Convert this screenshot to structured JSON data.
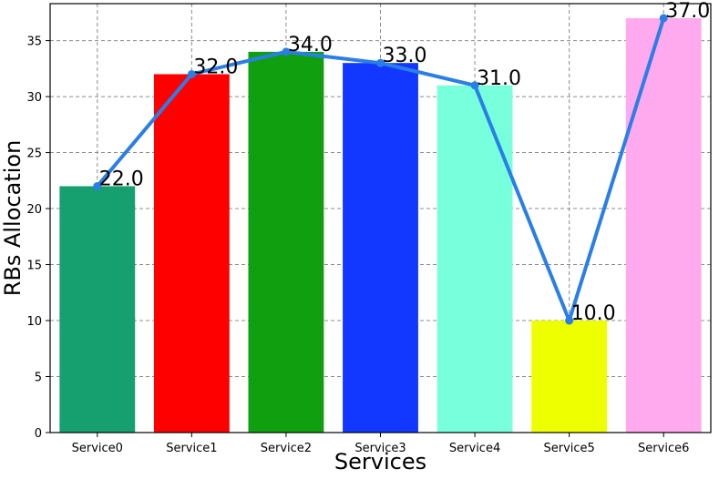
{
  "chart_data": {
    "type": "bar",
    "title": "",
    "xlabel": "Services",
    "ylabel": "RBs Allocation",
    "categories": [
      "Service0",
      "Service1",
      "Service2",
      "Service3",
      "Service4",
      "Service5",
      "Service6"
    ],
    "values": [
      22,
      32,
      34,
      33,
      31,
      10,
      37
    ],
    "data_labels": [
      "22.0",
      "32.0",
      "34.0",
      "33.0",
      "31.0",
      "10.0",
      "37.0"
    ],
    "bar_colors": [
      "#16a070",
      "#ff0000",
      "#0f9f0f",
      "#1238ff",
      "#78ffdc",
      "#eeff00",
      "#ffaaee"
    ],
    "line_overlay": {
      "values": [
        22,
        32,
        34,
        33,
        31,
        10,
        37
      ],
      "color": "#2a7fe6",
      "marker": "circle"
    },
    "ylim": [
      0,
      38.3
    ],
    "yticks": [
      0,
      5,
      10,
      15,
      20,
      25,
      30,
      35
    ],
    "ytick_labels": [
      "0",
      "5",
      "10",
      "15",
      "20",
      "25",
      "30",
      "35"
    ],
    "grid": true,
    "grid_style": "dashed",
    "legend": "none"
  }
}
